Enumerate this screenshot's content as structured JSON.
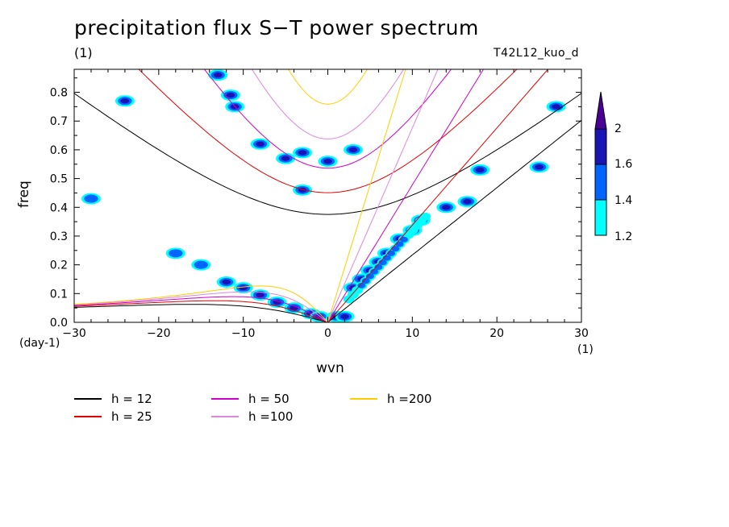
{
  "title": "precipitation flux S−T power spectrum",
  "units_top": "(1)",
  "run_id": "T42L12_kuo_d",
  "x_unit": "(1)",
  "y_unit": "(day-1)",
  "colors": {
    "cyan": "#00ffff",
    "blue": "#0064ff",
    "navy": "#1a14b4",
    "purple": "#4b0096"
  },
  "legend": [
    {
      "label": "h = 12",
      "color": "#000000"
    },
    {
      "label": "h = 25",
      "color": "#e00000"
    },
    {
      "label": "h = 50",
      "color": "#cc00cc"
    },
    {
      "label": "h =100",
      "color": "#dd88dd"
    },
    {
      "label": "h =200",
      "color": "#ffcc00"
    }
  ],
  "colorbar": {
    "levels": [
      "1.2",
      "1.4",
      "1.6",
      "2"
    ],
    "colors": [
      "#00ffff",
      "#0064ff",
      "#1a14b4",
      "#4b0096"
    ]
  },
  "chart_data": {
    "type": "heatmap",
    "title": "precipitation flux S−T power spectrum",
    "xlabel": "wvn",
    "ylabel": "freq",
    "xlim": [
      -30,
      30
    ],
    "ylim": [
      0,
      0.88
    ],
    "xticks": [
      -30,
      -20,
      -10,
      0,
      10,
      20,
      30
    ],
    "xtick_labels": [
      "−30",
      "−20",
      "−10",
      "0",
      "10",
      "20",
      "30"
    ],
    "yticks": [
      0,
      0.1,
      0.2,
      0.3,
      0.4,
      0.5,
      0.6,
      0.7,
      0.8
    ],
    "ytick_labels": [
      "0.0",
      "0.1",
      "0.2",
      "0.3",
      "0.4",
      "0.5",
      "0.6",
      "0.7",
      "0.8"
    ],
    "dispersion_curves_equivalent_depth_m": [
      12,
      25,
      50,
      100,
      200
    ],
    "power_blobs": [
      {
        "k": -13,
        "f": 0.86,
        "level": 3
      },
      {
        "k": -11.5,
        "f": 0.79,
        "level": 2
      },
      {
        "k": -11,
        "f": 0.75,
        "level": 3
      },
      {
        "k": -8,
        "f": 0.62,
        "level": 3
      },
      {
        "k": -5,
        "f": 0.57,
        "level": 2
      },
      {
        "k": -3,
        "f": 0.59,
        "level": 2
      },
      {
        "k": -3,
        "f": 0.46,
        "level": 2
      },
      {
        "k": 0,
        "f": 0.56,
        "level": 2
      },
      {
        "k": 3,
        "f": 0.6,
        "level": 2
      },
      {
        "k": -24,
        "f": 0.77,
        "level": 2
      },
      {
        "k": -28,
        "f": 0.43,
        "level": 1
      },
      {
        "k": 25,
        "f": 0.54,
        "level": 2
      },
      {
        "k": 18,
        "f": 0.53,
        "level": 2
      },
      {
        "k": 27,
        "f": 0.75,
        "level": 2
      },
      {
        "k": 16.5,
        "f": 0.42,
        "level": 2
      },
      {
        "k": 14,
        "f": 0.4,
        "level": 2
      },
      {
        "k": 11,
        "f": 0.355,
        "level": 3
      },
      {
        "k": 10,
        "f": 0.32,
        "level": 2
      },
      {
        "k": 8.5,
        "f": 0.29,
        "level": 2
      },
      {
        "k": 7,
        "f": 0.24,
        "level": 3
      },
      {
        "k": 6,
        "f": 0.21,
        "level": 3
      },
      {
        "k": 5,
        "f": 0.18,
        "level": 3
      },
      {
        "k": 4,
        "f": 0.15,
        "level": 2
      },
      {
        "k": 3,
        "f": 0.12,
        "level": 2
      },
      {
        "k": -8,
        "f": 0.095,
        "level": 3
      },
      {
        "k": -6,
        "f": 0.07,
        "level": 3
      },
      {
        "k": -4,
        "f": 0.05,
        "level": 3
      },
      {
        "k": -2,
        "f": 0.03,
        "level": 3
      },
      {
        "k": -1,
        "f": 0.02,
        "level": 3
      },
      {
        "k": 1,
        "f": 0.02,
        "level": 3
      },
      {
        "k": 2,
        "f": 0.02,
        "level": 2
      },
      {
        "k": -15,
        "f": 0.2,
        "level": 1
      },
      {
        "k": -18,
        "f": 0.24,
        "level": 1
      },
      {
        "k": -12,
        "f": 0.14,
        "level": 2
      },
      {
        "k": -10,
        "f": 0.12,
        "level": 2
      }
    ],
    "color_levels": [
      1.2,
      1.4,
      1.6,
      2
    ]
  }
}
